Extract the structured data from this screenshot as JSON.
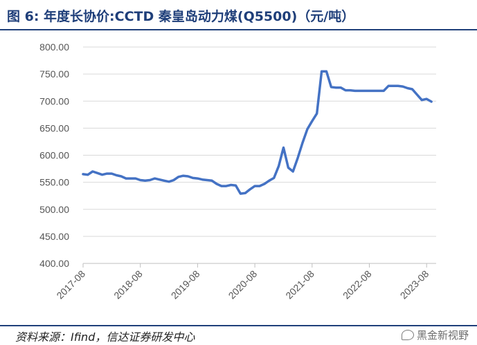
{
  "figure": {
    "title": "图 6:  年度长协价:CCTD 秦皇岛动力煤(Q5500)（元/吨）",
    "source": "资料来源：Ifind，信达证券研发中心",
    "watermark": "黑金新视野",
    "watermark_icon": "wechat-icon"
  },
  "chart_data": {
    "type": "line",
    "title": "年度长协价:CCTD 秦皇岛动力煤(Q5500)（元/吨）",
    "xlabel": "",
    "ylabel": "",
    "ylim": [
      400,
      800
    ],
    "y_ticks": [
      "400.00",
      "450.00",
      "500.00",
      "550.00",
      "600.00",
      "650.00",
      "700.00",
      "750.00",
      "800.00"
    ],
    "x_ticks": [
      "2017-08",
      "2018-08",
      "2019-08",
      "2020-08",
      "2021-08",
      "2022-08",
      "2023-08"
    ],
    "grid": true,
    "legend": "none",
    "line_color": "#4472c4",
    "series": [
      {
        "x": [
          "2017-08",
          "2017-09",
          "2017-10",
          "2017-11",
          "2017-12",
          "2018-01",
          "2018-02",
          "2018-03",
          "2018-04",
          "2018-05",
          "2018-06",
          "2018-07",
          "2018-08",
          "2018-09",
          "2018-10",
          "2018-11",
          "2018-12",
          "2019-01",
          "2019-02",
          "2019-03",
          "2019-04",
          "2019-05",
          "2019-06",
          "2019-07",
          "2019-08",
          "2019-09",
          "2019-10",
          "2019-11",
          "2019-12",
          "2020-01",
          "2020-02",
          "2020-03",
          "2020-04",
          "2020-05",
          "2020-06",
          "2020-07",
          "2020-08",
          "2020-09",
          "2020-10",
          "2020-11",
          "2020-12",
          "2021-01",
          "2021-02",
          "2021-03",
          "2021-04",
          "2021-05",
          "2021-06",
          "2021-07",
          "2021-08",
          "2021-09",
          "2021-10",
          "2021-11",
          "2021-12",
          "2022-01",
          "2022-02",
          "2022-03",
          "2022-04",
          "2022-05",
          "2022-06",
          "2022-07",
          "2022-08",
          "2022-09",
          "2022-10",
          "2022-11",
          "2022-12",
          "2023-01",
          "2023-02",
          "2023-03",
          "2023-04",
          "2023-05",
          "2023-06",
          "2023-07",
          "2023-08",
          "2023-09"
        ],
        "values": [
          565,
          564,
          570,
          567,
          564,
          566,
          566,
          563,
          561,
          557,
          557,
          557,
          554,
          553,
          554,
          557,
          555,
          553,
          551,
          554,
          560,
          562,
          561,
          558,
          557,
          555,
          554,
          553,
          547,
          543,
          543,
          545,
          544,
          529,
          530,
          537,
          543,
          543,
          547,
          553,
          558,
          580,
          614,
          577,
          570,
          595,
          623,
          648,
          663,
          677,
          755,
          755,
          726,
          725,
          725,
          720,
          720,
          719,
          719,
          719,
          719,
          719,
          719,
          719,
          728,
          728,
          728,
          727,
          724,
          722,
          712,
          702,
          704,
          699
        ]
      }
    ]
  }
}
